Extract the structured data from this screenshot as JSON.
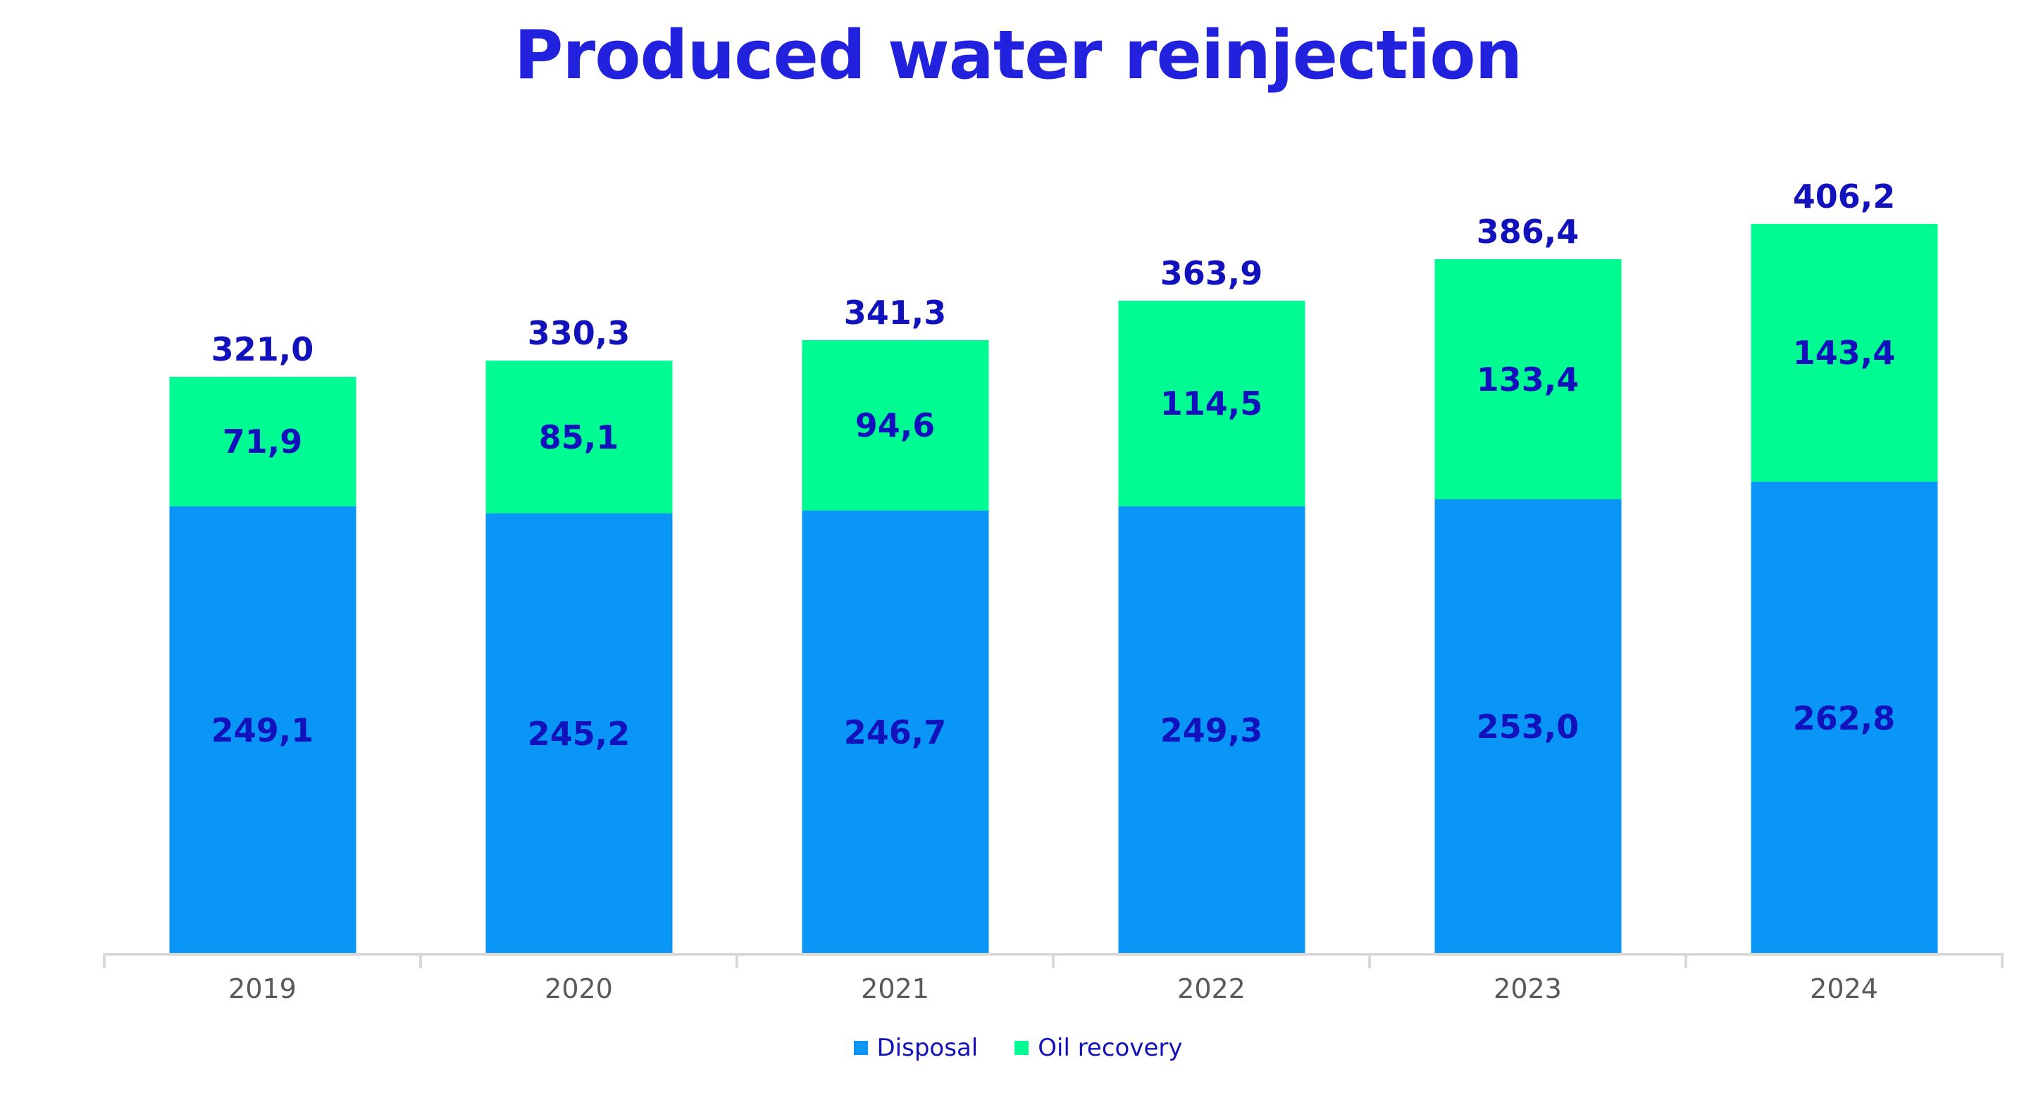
{
  "title": "Produced water reinjection",
  "chart_data": {
    "type": "bar",
    "stacked": true,
    "title": "Produced water reinjection",
    "categories": [
      "2019",
      "2020",
      "2021",
      "2022",
      "2023",
      "2024"
    ],
    "series": [
      {
        "name": "Disposal",
        "color": "#0A96F6",
        "values": [
          249.1,
          245.2,
          246.7,
          249.3,
          253.0,
          262.8
        ]
      },
      {
        "name": "Oil recovery",
        "color": "#00FB92",
        "values": [
          71.9,
          85.1,
          94.6,
          114.5,
          133.4,
          143.4
        ]
      }
    ],
    "totals": [
      321.0,
      330.3,
      341.3,
      363.9,
      386.4,
      406.2
    ],
    "decimal_separator": ",",
    "legend_position": "bottom",
    "grid": false,
    "y_axis_visible": false
  },
  "legend": {
    "disposal_label": "Disposal",
    "oil_recovery_label": "Oil recovery"
  },
  "colors": {
    "disposal": "#0A96F6",
    "oil_recovery": "#00FB92",
    "title_text": "#2121DE",
    "data_label_text": "#1212BC",
    "category_label_text": "#595959",
    "axis_line": "#D9D9D9",
    "background": "#FFFFFF"
  }
}
